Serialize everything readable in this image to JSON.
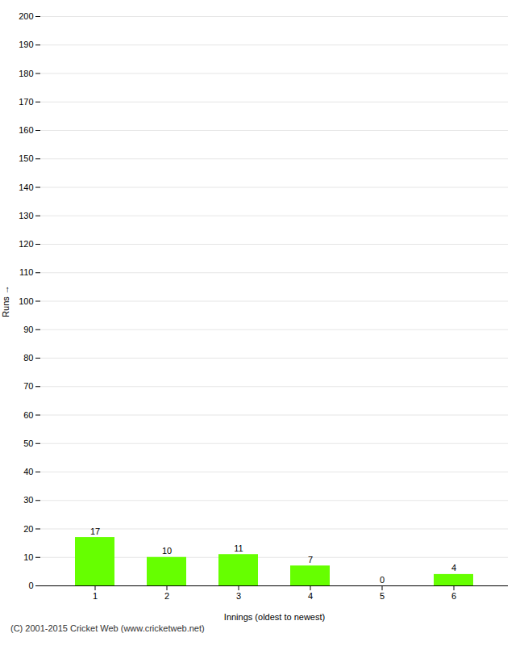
{
  "chart_data": {
    "type": "bar",
    "categories": [
      "1",
      "2",
      "3",
      "4",
      "5",
      "6"
    ],
    "values": [
      17,
      10,
      11,
      7,
      0,
      4
    ],
    "color": "#66ff00",
    "xlabel": "Innings (oldest to newest)",
    "ylabel": "Runs",
    "ylim": [
      0,
      200
    ],
    "yticks": [
      0,
      10,
      20,
      30,
      40,
      50,
      60,
      70,
      80,
      90,
      100,
      110,
      120,
      130,
      140,
      150,
      160,
      170,
      180,
      190,
      200
    ],
    "grid": true,
    "data_labels": true,
    "annotations": [
      "(C) 2001-2015 Cricket Web (www.cricketweb.net)"
    ]
  }
}
